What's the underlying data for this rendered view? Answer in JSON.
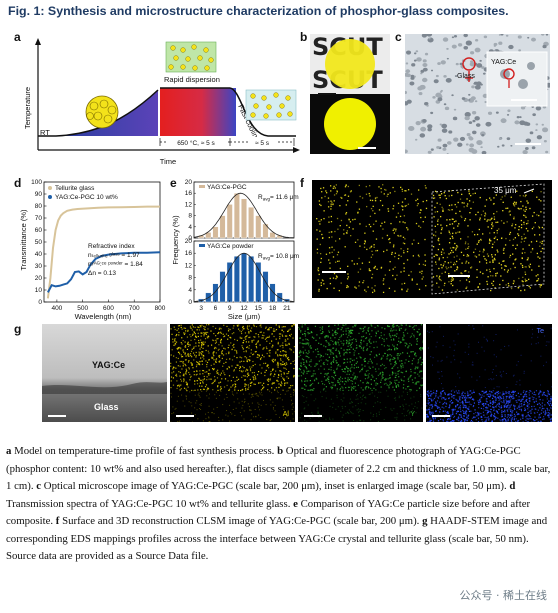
{
  "figure": {
    "title": "Fig. 1: Synthesis and microstructure characterization of phosphor-glass composites.",
    "panel_labels": [
      "a",
      "b",
      "c",
      "d",
      "e",
      "f",
      "g"
    ]
  },
  "panel_a": {
    "ylabel": "Temperature",
    "xlabel": "Time",
    "rt_label": "RT",
    "rapid_label": "Rapid dispersion",
    "cooling_label": "Fast cooling",
    "time1_label": "650 °C, ≈ 5 s",
    "time2_label": "≈ 5 s"
  },
  "panel_b": {
    "sign_text_top": "SCUT",
    "sign_text_mid": "SCUT"
  },
  "panel_c": {
    "inset_label": "YAG:Ce",
    "glass_label": "Glass"
  },
  "panel_d": {
    "chart_data": {
      "type": "line",
      "xlabel": "Wavelength (nm)",
      "ylabel": "Transmittance (%)",
      "xlim": [
        350,
        800
      ],
      "ylim": [
        0,
        100
      ],
      "xticks": [
        400,
        500,
        600,
        700,
        800
      ],
      "yticks": [
        0,
        10,
        20,
        30,
        40,
        50,
        60,
        70,
        80,
        90,
        100
      ],
      "series": [
        {
          "name": "Tellurite glass",
          "color": "#d8c49a",
          "x": [
            365,
            375,
            385,
            395,
            405,
            415,
            425,
            440,
            460,
            480,
            520,
            560,
            600,
            650,
            700,
            750,
            800
          ],
          "y": [
            3,
            20,
            45,
            60,
            68,
            72,
            74,
            76,
            77,
            77.5,
            78,
            78.5,
            78.8,
            79,
            79.2,
            79.5,
            79.5
          ]
        },
        {
          "name": "YAG:Ce-PGC 10 wt%",
          "color": "#1f5fa8",
          "x": [
            365,
            380,
            395,
            410,
            425,
            440,
            455,
            470,
            485,
            500,
            515,
            530,
            550,
            575,
            600,
            650,
            700,
            750,
            800
          ],
          "y": [
            8,
            14,
            13,
            13.5,
            14.5,
            15.5,
            19,
            25,
            25.5,
            23,
            25,
            31,
            36,
            38.5,
            39.5,
            40.5,
            41,
            41,
            41.5
          ]
        }
      ],
      "legend_position": "top-left",
      "annotation_title": "Refractive index",
      "annotation_lines": [
        "nₜₑₗₗᵤᵣᵢₜₑ ᵍˡᵃˢˢ = 1.97",
        "nʸᴬᴳ:ᶜᵉ ᵖᵒʷᵈᵉʳ = 1.84",
        "Δn = 0.13"
      ]
    }
  },
  "panel_e": {
    "chart_data": [
      {
        "type": "bar",
        "name": "YAG:Ce-PGC",
        "color": "#d4b99a",
        "x": [
          3,
          4.5,
          6,
          7.5,
          9,
          10.5,
          12,
          13.5,
          15,
          16.5,
          18,
          19.5
        ],
        "values": [
          1,
          2,
          4,
          8,
          12,
          16,
          14,
          11,
          8,
          5,
          2,
          1
        ],
        "ravg_label": "R",
        "ravg_sub": "avg",
        "ravg_value": "= 11.6 μm",
        "ylim": [
          0,
          20
        ],
        "yticks": [
          0,
          4,
          8,
          12,
          16,
          20
        ]
      },
      {
        "type": "bar",
        "name": "YAG:Ce powder",
        "color": "#1f5fa8",
        "x": [
          3,
          4.5,
          6,
          7.5,
          9,
          10.5,
          12,
          13.5,
          15,
          16.5,
          18,
          19.5,
          21
        ],
        "values": [
          1,
          3,
          6,
          10,
          13,
          15,
          16,
          15,
          13,
          10,
          6,
          3,
          1
        ],
        "ravg_label": "R",
        "ravg_sub": "avg",
        "ravg_value": "= 10.8 μm",
        "ylim": [
          0,
          20
        ],
        "yticks": [
          0,
          4,
          8,
          12,
          16,
          20
        ],
        "xlabel": "Size (μm)",
        "xticks": [
          3,
          6,
          9,
          12,
          15,
          18,
          21
        ]
      }
    ],
    "ylabel": "Frequency (%)"
  },
  "panel_f": {
    "thickness_label": "35 μm"
  },
  "panel_g": {
    "crystal_label": "YAG:Ce",
    "glass_label": "Glass",
    "map_labels": [
      "Al",
      "Y",
      "Te"
    ],
    "map_colors": [
      "#e6d300",
      "#2fae2f",
      "#2a4bff"
    ]
  },
  "caption": {
    "a_label": "a",
    "a_text": " Model on temperature-time profile of fast synthesis process. ",
    "b_label": "b",
    "b_text": " Optical and fluorescence photograph of YAG:Ce-PGC (phosphor content: 10 wt% and also used hereafter.), flat discs sample (diameter of 2.2 cm and thickness of 1.0 mm, scale bar, 1 cm). ",
    "c_label": "c",
    "c_text": " Optical microscope image of YAG:Ce-PGC (scale bar, 200 μm), inset is enlarged image (scale bar, 50 μm). ",
    "d_label": "d",
    "d_text": " Transmission spectra of YAG:Ce-PGC 10 wt% and tellurite glass. ",
    "e_label": "e",
    "e_text": " Comparison of YAG:Ce particle size before and after composite. ",
    "f_label": "f",
    "f_text": " Surface and 3D reconstruction CLSM image of YAG:Ce-PGC (scale bar, 200 μm). ",
    "g_label": "g",
    "g_text": " HAADF-STEM image and corresponding EDS mappings profiles across the interface between YAG:Ce crystal and tellurite glass (scale bar, 50 nm). Source data are provided as a Source Data file."
  },
  "watermark": "公众号 · 稀土在线"
}
